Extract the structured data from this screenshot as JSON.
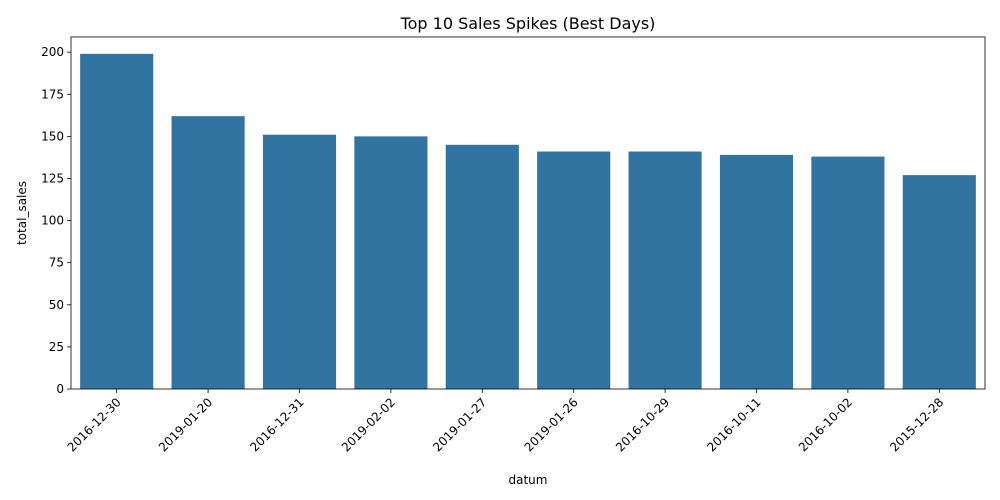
{
  "chart_data": {
    "type": "bar",
    "title": "Top 10 Sales Spikes (Best Days)",
    "xlabel": "datum",
    "ylabel": "total_sales",
    "categories": [
      "2016-12-30",
      "2019-01-20",
      "2016-12-31",
      "2019-02-02",
      "2019-01-27",
      "2019-01-26",
      "2016-10-29",
      "2016-10-11",
      "2016-10-02",
      "2015-12-28"
    ],
    "values": [
      199,
      162,
      151,
      150,
      145,
      141,
      141,
      139,
      138,
      127
    ],
    "ylim": [
      0,
      209
    ],
    "yticks": [
      0,
      25,
      50,
      75,
      100,
      125,
      150,
      175,
      200
    ],
    "bar_color": "#3274a1",
    "grid": false,
    "legend": "none"
  }
}
